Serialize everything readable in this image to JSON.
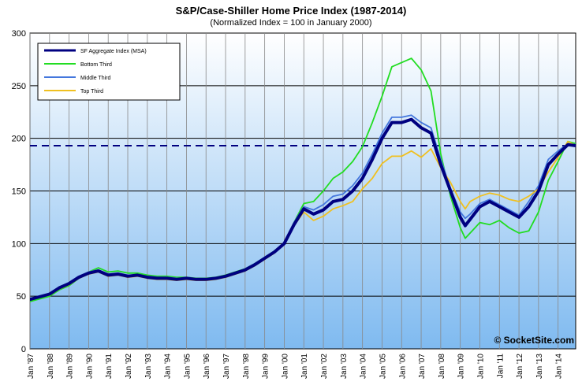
{
  "chart_data": {
    "type": "line",
    "title": "S&P/Case-Shiller Home Price Index (1987-2014)",
    "subtitle": "(Normalized Index = 100 in January 2000)",
    "xlabel": "",
    "ylabel": "",
    "ylim": [
      0,
      300
    ],
    "yticks": [
      "0",
      "50",
      "100",
      "150",
      "200",
      "250",
      "300"
    ],
    "xlim": [
      1987.0,
      2014.9
    ],
    "xticks": [
      "Jan '87",
      "Jan '88",
      "Jan '89",
      "Jan '90",
      "Jan '91",
      "Jan '92",
      "Jan '93",
      "Jan '94",
      "Jan '95",
      "Jan '96",
      "Jan '97",
      "Jan '98",
      "Jan '99",
      "Jan '00",
      "Jan '01",
      "Jan '02",
      "Jan '03",
      "Jan '04",
      "Jan '05",
      "Jan '06",
      "Jan '07",
      "Jan '08",
      "Jan '09",
      "Jan '10",
      "Jan '11",
      "Jan '12",
      "Jan '13",
      "Jan '14"
    ],
    "grid": true,
    "legend_position": "top-left",
    "reference_line": {
      "y": 193,
      "style": "dashed",
      "color": "#000080"
    },
    "series": [
      {
        "name": "SF Aggregate Index (MSA)",
        "color": "#000080",
        "points": [
          [
            1987.0,
            47
          ],
          [
            1988.0,
            52
          ],
          [
            1988.5,
            58
          ],
          [
            1989.0,
            62
          ],
          [
            1989.5,
            68
          ],
          [
            1990.0,
            72
          ],
          [
            1990.5,
            74
          ],
          [
            1991.0,
            70
          ],
          [
            1991.5,
            71
          ],
          [
            1992.0,
            69
          ],
          [
            1992.5,
            70
          ],
          [
            1993.0,
            68
          ],
          [
            1993.5,
            67
          ],
          [
            1994.0,
            67
          ],
          [
            1994.5,
            66
          ],
          [
            1995.0,
            67
          ],
          [
            1995.5,
            66
          ],
          [
            1996.0,
            66
          ],
          [
            1996.5,
            67
          ],
          [
            1997.0,
            69
          ],
          [
            1997.5,
            72
          ],
          [
            1998.0,
            75
          ],
          [
            1998.5,
            80
          ],
          [
            1999.0,
            86
          ],
          [
            1999.5,
            92
          ],
          [
            2000.0,
            100
          ],
          [
            2000.5,
            118
          ],
          [
            2001.0,
            133
          ],
          [
            2001.5,
            128
          ],
          [
            2002.0,
            132
          ],
          [
            2002.5,
            140
          ],
          [
            2003.0,
            142
          ],
          [
            2003.5,
            150
          ],
          [
            2004.0,
            162
          ],
          [
            2004.5,
            180
          ],
          [
            2005.0,
            200
          ],
          [
            2005.5,
            215
          ],
          [
            2006.0,
            215
          ],
          [
            2006.5,
            218
          ],
          [
            2007.0,
            210
          ],
          [
            2007.5,
            205
          ],
          [
            2008.0,
            175
          ],
          [
            2008.5,
            150
          ],
          [
            2009.0,
            125
          ],
          [
            2009.25,
            117
          ],
          [
            2009.5,
            123
          ],
          [
            2010.0,
            135
          ],
          [
            2010.5,
            140
          ],
          [
            2011.0,
            135
          ],
          [
            2011.5,
            130
          ],
          [
            2012.0,
            125
          ],
          [
            2012.5,
            135
          ],
          [
            2013.0,
            150
          ],
          [
            2013.5,
            175
          ],
          [
            2014.0,
            185
          ],
          [
            2014.5,
            194
          ],
          [
            2014.9,
            193
          ]
        ]
      },
      {
        "name": "Bottom Third",
        "color": "#22dd22",
        "points": [
          [
            1987.0,
            45
          ],
          [
            1988.0,
            50
          ],
          [
            1988.5,
            56
          ],
          [
            1989.0,
            60
          ],
          [
            1989.5,
            67
          ],
          [
            1990.0,
            73
          ],
          [
            1990.5,
            77
          ],
          [
            1991.0,
            73
          ],
          [
            1991.5,
            74
          ],
          [
            1992.0,
            72
          ],
          [
            1992.5,
            72
          ],
          [
            1993.0,
            70
          ],
          [
            1993.5,
            69
          ],
          [
            1994.0,
            69
          ],
          [
            1994.5,
            68
          ],
          [
            1995.0,
            68
          ],
          [
            1995.5,
            67
          ],
          [
            1996.0,
            67
          ],
          [
            1996.5,
            68
          ],
          [
            1997.0,
            70
          ],
          [
            1997.5,
            73
          ],
          [
            1998.0,
            76
          ],
          [
            1998.5,
            81
          ],
          [
            1999.0,
            87
          ],
          [
            1999.5,
            93
          ],
          [
            2000.0,
            100
          ],
          [
            2000.5,
            120
          ],
          [
            2001.0,
            138
          ],
          [
            2001.5,
            140
          ],
          [
            2002.0,
            150
          ],
          [
            2002.5,
            162
          ],
          [
            2003.0,
            168
          ],
          [
            2003.5,
            178
          ],
          [
            2004.0,
            192
          ],
          [
            2004.5,
            215
          ],
          [
            2005.0,
            240
          ],
          [
            2005.5,
            268
          ],
          [
            2006.0,
            272
          ],
          [
            2006.5,
            276
          ],
          [
            2007.0,
            265
          ],
          [
            2007.5,
            245
          ],
          [
            2008.0,
            185
          ],
          [
            2008.5,
            145
          ],
          [
            2009.0,
            115
          ],
          [
            2009.25,
            105
          ],
          [
            2009.5,
            110
          ],
          [
            2010.0,
            120
          ],
          [
            2010.5,
            118
          ],
          [
            2011.0,
            122
          ],
          [
            2011.5,
            115
          ],
          [
            2012.0,
            110
          ],
          [
            2012.5,
            112
          ],
          [
            2013.0,
            130
          ],
          [
            2013.5,
            160
          ],
          [
            2014.0,
            178
          ],
          [
            2014.5,
            197
          ],
          [
            2014.9,
            195
          ]
        ]
      },
      {
        "name": "Middle Third",
        "color": "#4477dd",
        "points": [
          [
            1987.0,
            47
          ],
          [
            1988.0,
            52
          ],
          [
            1988.5,
            58
          ],
          [
            1989.0,
            63
          ],
          [
            1989.5,
            69
          ],
          [
            1990.0,
            73
          ],
          [
            1990.5,
            75
          ],
          [
            1991.0,
            71
          ],
          [
            1991.5,
            72
          ],
          [
            1992.0,
            70
          ],
          [
            1992.5,
            70
          ],
          [
            1993.0,
            69
          ],
          [
            1993.5,
            68
          ],
          [
            1994.0,
            68
          ],
          [
            1994.5,
            67
          ],
          [
            1995.0,
            67
          ],
          [
            1995.5,
            66
          ],
          [
            1996.0,
            66
          ],
          [
            1996.5,
            67
          ],
          [
            1997.0,
            69
          ],
          [
            1997.5,
            72
          ],
          [
            1998.0,
            76
          ],
          [
            1998.5,
            81
          ],
          [
            1999.0,
            87
          ],
          [
            1999.5,
            93
          ],
          [
            2000.0,
            100
          ],
          [
            2000.5,
            120
          ],
          [
            2001.0,
            135
          ],
          [
            2001.5,
            132
          ],
          [
            2002.0,
            137
          ],
          [
            2002.5,
            145
          ],
          [
            2003.0,
            147
          ],
          [
            2003.5,
            155
          ],
          [
            2004.0,
            167
          ],
          [
            2004.5,
            185
          ],
          [
            2005.0,
            205
          ],
          [
            2005.5,
            220
          ],
          [
            2006.0,
            220
          ],
          [
            2006.5,
            222
          ],
          [
            2007.0,
            215
          ],
          [
            2007.5,
            210
          ],
          [
            2008.0,
            180
          ],
          [
            2008.5,
            152
          ],
          [
            2009.0,
            130
          ],
          [
            2009.25,
            124
          ],
          [
            2009.5,
            128
          ],
          [
            2010.0,
            138
          ],
          [
            2010.5,
            142
          ],
          [
            2011.0,
            137
          ],
          [
            2011.5,
            132
          ],
          [
            2012.0,
            127
          ],
          [
            2012.5,
            140
          ],
          [
            2013.0,
            155
          ],
          [
            2013.5,
            180
          ],
          [
            2014.0,
            188
          ],
          [
            2014.5,
            195
          ],
          [
            2014.9,
            194
          ]
        ]
      },
      {
        "name": "Top Third",
        "color": "#f0c020",
        "points": [
          [
            1987.0,
            47
          ],
          [
            1988.0,
            51
          ],
          [
            1988.5,
            57
          ],
          [
            1989.0,
            61
          ],
          [
            1989.5,
            67
          ],
          [
            1990.0,
            71
          ],
          [
            1990.5,
            73
          ],
          [
            1991.0,
            69
          ],
          [
            1991.5,
            70
          ],
          [
            1992.0,
            68
          ],
          [
            1992.5,
            69
          ],
          [
            1993.0,
            67
          ],
          [
            1993.5,
            66
          ],
          [
            1994.0,
            66
          ],
          [
            1994.5,
            65
          ],
          [
            1995.0,
            66
          ],
          [
            1995.5,
            65
          ],
          [
            1996.0,
            65
          ],
          [
            1996.5,
            66
          ],
          [
            1997.0,
            68
          ],
          [
            1997.5,
            71
          ],
          [
            1998.0,
            74
          ],
          [
            1998.5,
            79
          ],
          [
            1999.0,
            85
          ],
          [
            1999.5,
            91
          ],
          [
            2000.0,
            100
          ],
          [
            2000.5,
            117
          ],
          [
            2001.0,
            130
          ],
          [
            2001.5,
            122
          ],
          [
            2002.0,
            126
          ],
          [
            2002.5,
            133
          ],
          [
            2003.0,
            136
          ],
          [
            2003.5,
            140
          ],
          [
            2004.0,
            152
          ],
          [
            2004.5,
            162
          ],
          [
            2005.0,
            176
          ],
          [
            2005.5,
            183
          ],
          [
            2006.0,
            183
          ],
          [
            2006.5,
            188
          ],
          [
            2007.0,
            182
          ],
          [
            2007.5,
            190
          ],
          [
            2008.0,
            172
          ],
          [
            2008.5,
            158
          ],
          [
            2009.0,
            140
          ],
          [
            2009.25,
            133
          ],
          [
            2009.5,
            140
          ],
          [
            2010.0,
            145
          ],
          [
            2010.5,
            148
          ],
          [
            2011.0,
            146
          ],
          [
            2011.5,
            142
          ],
          [
            2012.0,
            140
          ],
          [
            2012.5,
            145
          ],
          [
            2013.0,
            152
          ],
          [
            2013.5,
            168
          ],
          [
            2014.0,
            182
          ],
          [
            2014.5,
            197
          ],
          [
            2014.9,
            193
          ]
        ]
      }
    ]
  },
  "watermark": "© SocketSite.com"
}
